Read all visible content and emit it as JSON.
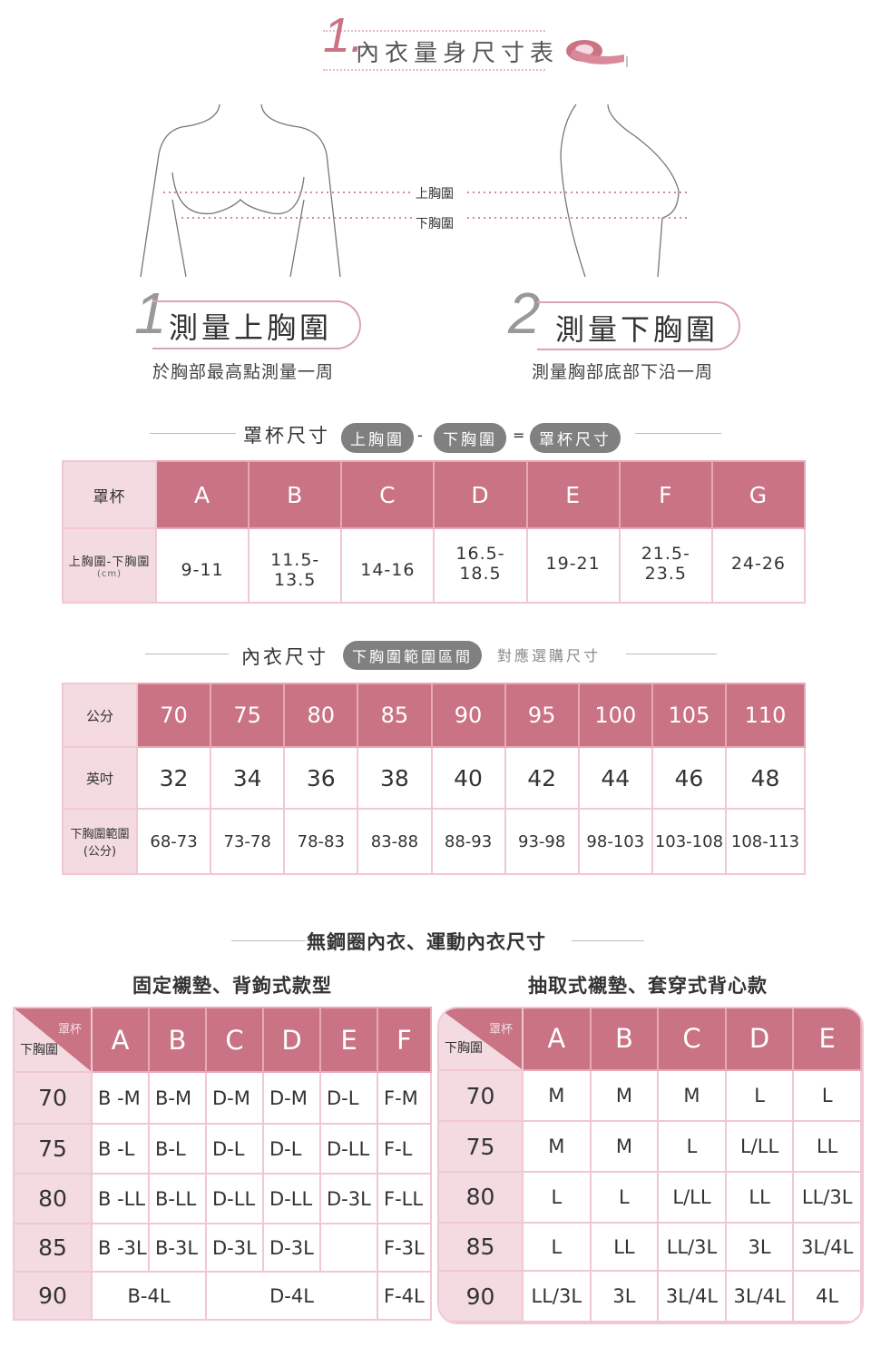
{
  "header": {
    "number": "1.",
    "title": "內衣量身尺寸表",
    "icon": "measuring-tape-icon"
  },
  "figure": {
    "upper_label": "上胸圍",
    "lower_label": "下胸圍"
  },
  "steps": [
    {
      "num": "1",
      "title": "測量上胸圍",
      "desc": "於胸部最高點測量一周"
    },
    {
      "num": "2",
      "title": "測量下胸圍",
      "desc": "測量胸部底部下沿一周"
    }
  ],
  "cup_formula": {
    "label": "罩杯尺寸",
    "a": "上胸圍",
    "minus": "-",
    "b": "下胸圍",
    "eq": "=",
    "c": "罩杯尺寸"
  },
  "cup_table": {
    "corner": "罩杯",
    "row_label": "上胸圍-下胸圍",
    "row_unit": "(cm)",
    "cups": [
      "A",
      "B",
      "C",
      "D",
      "E",
      "F",
      "G"
    ],
    "values": [
      "9-11",
      "11.5-13.5",
      "14-16",
      "16.5-18.5",
      "19-21",
      "21.5-23.5",
      "24-26"
    ]
  },
  "bra_formula": {
    "label": "內衣尺寸",
    "pill": "下胸圍範圍區間",
    "suffix": "對應選購尺寸"
  },
  "bra_table": {
    "cm_label": "公分",
    "inch_label": "英吋",
    "range_label": "下胸圍範圍",
    "range_unit": "(公分)",
    "cm": [
      "70",
      "75",
      "80",
      "85",
      "90",
      "95",
      "100",
      "105",
      "110"
    ],
    "inch": [
      "32",
      "34",
      "36",
      "38",
      "40",
      "42",
      "44",
      "46",
      "48"
    ],
    "range": [
      "68-73",
      "73-78",
      "78-83",
      "83-88",
      "88-93",
      "93-98",
      "98-103",
      "103-108",
      "108-113"
    ]
  },
  "wireless": {
    "title": "無鋼圈內衣、運動內衣尺寸",
    "left": {
      "title": "固定襯墊、背鉤式款型",
      "corner_top": "罩杯",
      "corner_bottom": "下胸圍",
      "cups": [
        "A",
        "B",
        "C",
        "D",
        "E",
        "F"
      ],
      "rows": [
        {
          "band": "70",
          "cells": [
            "B -M",
            "B-M",
            "D-M",
            "D-M",
            "D-L",
            "F-M"
          ]
        },
        {
          "band": "75",
          "cells": [
            "B -L",
            "B-L",
            "D-L",
            "D-L",
            "D-LL",
            "F-L"
          ]
        },
        {
          "band": "80",
          "cells": [
            "B -LL",
            "B-LL",
            "D-LL",
            "D-LL",
            "D-3L",
            "F-LL"
          ]
        },
        {
          "band": "85",
          "cells": [
            "B -3L",
            "B-3L",
            "D-3L",
            "D-3L",
            "",
            "F-3L"
          ]
        },
        {
          "band": "90",
          "cells": [
            "B-4L",
            "D-4L",
            "F-4L"
          ]
        }
      ]
    },
    "right": {
      "title": "抽取式襯墊、套穿式背心款",
      "corner_top": "罩杯",
      "corner_bottom": "下胸圍",
      "cups": [
        "A",
        "B",
        "C",
        "D",
        "E"
      ],
      "rows": [
        {
          "band": "70",
          "cells": [
            "M",
            "M",
            "M",
            "L",
            "L"
          ]
        },
        {
          "band": "75",
          "cells": [
            "M",
            "M",
            "L",
            "L/LL",
            "LL"
          ]
        },
        {
          "band": "80",
          "cells": [
            "L",
            "L",
            "L/LL",
            "LL",
            "LL/3L"
          ]
        },
        {
          "band": "85",
          "cells": [
            "L",
            "LL",
            "LL/3L",
            "3L",
            "3L/4L"
          ]
        },
        {
          "band": "90",
          "cells": [
            "LL/3L",
            "3L",
            "3L/4L",
            "3L/4L",
            "4L"
          ]
        }
      ]
    }
  },
  "colors": {
    "accent": "#c97384",
    "label_bg": "#f3dbe1",
    "pill": "#808080"
  }
}
